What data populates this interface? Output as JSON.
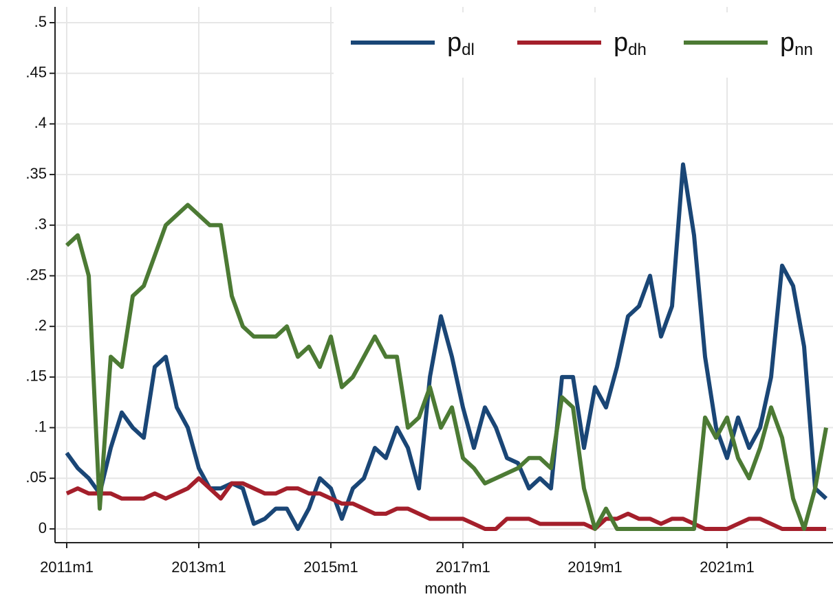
{
  "chart_data": {
    "type": "line",
    "x_label": "month",
    "x": [
      "2011m1",
      "2011m3",
      "2011m5",
      "2011m7",
      "2011m9",
      "2011m11",
      "2012m1",
      "2012m3",
      "2012m5",
      "2012m7",
      "2012m9",
      "2012m11",
      "2013m1",
      "2013m3",
      "2013m5",
      "2013m7",
      "2013m9",
      "2013m11",
      "2014m1",
      "2014m3",
      "2014m5",
      "2014m7",
      "2014m9",
      "2014m11",
      "2015m1",
      "2015m3",
      "2015m5",
      "2015m7",
      "2015m9",
      "2015m11",
      "2016m1",
      "2016m3",
      "2016m5",
      "2016m7",
      "2016m9",
      "2016m11",
      "2017m1",
      "2017m3",
      "2017m5",
      "2017m7",
      "2017m9",
      "2017m11",
      "2018m1",
      "2018m3",
      "2018m5",
      "2018m7",
      "2018m9",
      "2018m11",
      "2019m1",
      "2019m3",
      "2019m5",
      "2019m7",
      "2019m9",
      "2019m11",
      "2020m1",
      "2020m3",
      "2020m5",
      "2020m7",
      "2020m9",
      "2020m11",
      "2021m1",
      "2021m3",
      "2021m5",
      "2021m7",
      "2021m9",
      "2021m11",
      "2022m1",
      "2022m3",
      "2022m5",
      "2022m7"
    ],
    "series": [
      {
        "name": "pdl",
        "color": "#1a4676",
        "values": [
          0.075,
          0.06,
          0.05,
          0.035,
          0.08,
          0.115,
          0.1,
          0.09,
          0.16,
          0.17,
          0.12,
          0.1,
          0.06,
          0.04,
          0.04,
          0.045,
          0.04,
          0.005,
          0.01,
          0.02,
          0.02,
          0.0,
          0.02,
          0.05,
          0.04,
          0.01,
          0.04,
          0.05,
          0.08,
          0.07,
          0.1,
          0.08,
          0.04,
          0.15,
          0.21,
          0.17,
          0.12,
          0.08,
          0.12,
          0.1,
          0.07,
          0.065,
          0.04,
          0.05,
          0.04,
          0.15,
          0.15,
          0.08,
          0.14,
          0.12,
          0.16,
          0.21,
          0.22,
          0.25,
          0.19,
          0.22,
          0.36,
          0.29,
          0.17,
          0.1,
          0.07,
          0.11,
          0.08,
          0.1,
          0.15,
          0.26,
          0.24,
          0.18,
          0.04,
          0.03
        ]
      },
      {
        "name": "pdh",
        "color": "#a41f2b",
        "values": [
          0.035,
          0.04,
          0.035,
          0.035,
          0.035,
          0.03,
          0.03,
          0.03,
          0.035,
          0.03,
          0.035,
          0.04,
          0.05,
          0.04,
          0.03,
          0.045,
          0.045,
          0.04,
          0.035,
          0.035,
          0.04,
          0.04,
          0.035,
          0.035,
          0.03,
          0.025,
          0.025,
          0.02,
          0.015,
          0.015,
          0.02,
          0.02,
          0.015,
          0.01,
          0.01,
          0.01,
          0.01,
          0.005,
          0.0,
          0.0,
          0.01,
          0.01,
          0.01,
          0.005,
          0.005,
          0.005,
          0.005,
          0.005,
          0.0,
          0.01,
          0.01,
          0.015,
          0.01,
          0.01,
          0.005,
          0.01,
          0.01,
          0.005,
          0.0,
          0.0,
          0.0,
          0.005,
          0.01,
          0.01,
          0.005,
          0.0,
          0.0,
          0.0,
          0.0,
          0.0
        ]
      },
      {
        "name": "pnn",
        "color": "#4c7a34",
        "values": [
          0.28,
          0.29,
          0.25,
          0.02,
          0.17,
          0.16,
          0.23,
          0.24,
          0.27,
          0.3,
          0.31,
          0.32,
          0.31,
          0.3,
          0.3,
          0.23,
          0.2,
          0.19,
          0.19,
          0.19,
          0.2,
          0.17,
          0.18,
          0.16,
          0.19,
          0.14,
          0.15,
          0.17,
          0.19,
          0.17,
          0.17,
          0.1,
          0.11,
          0.14,
          0.1,
          0.12,
          0.07,
          0.06,
          0.045,
          0.05,
          0.055,
          0.06,
          0.07,
          0.07,
          0.06,
          0.13,
          0.12,
          0.04,
          0.0,
          0.02,
          0.0,
          0.0,
          0.0,
          0.0,
          0.0,
          0.0,
          0.0,
          0.0,
          0.11,
          0.09,
          0.11,
          0.07,
          0.05,
          0.08,
          0.12,
          0.09,
          0.03,
          0.0,
          0.04,
          0.1
        ]
      }
    ],
    "ylim": [
      -0.0136,
      0.5156
    ],
    "yticks": [
      0,
      {
        "value": 0.05,
        "label": ".05"
      },
      {
        "value": 0.1,
        "label": ".1"
      },
      {
        "value": 0.15,
        "label": ".15"
      },
      {
        "value": 0.2,
        "label": ".2"
      },
      {
        "value": 0.25,
        "label": ".25"
      },
      {
        "value": 0.3,
        "label": ".3"
      },
      {
        "value": 0.35,
        "label": ".35"
      },
      {
        "value": 0.4,
        "label": ".4"
      },
      {
        "value": 0.45,
        "label": ".45"
      },
      {
        "value": 0.5,
        "label": ".5"
      }
    ],
    "xticks": [
      "2011m1",
      "2013m1",
      "2015m1",
      "2017m1",
      "2019m1",
      "2021m1"
    ],
    "grid": true,
    "legend": "top-right"
  }
}
